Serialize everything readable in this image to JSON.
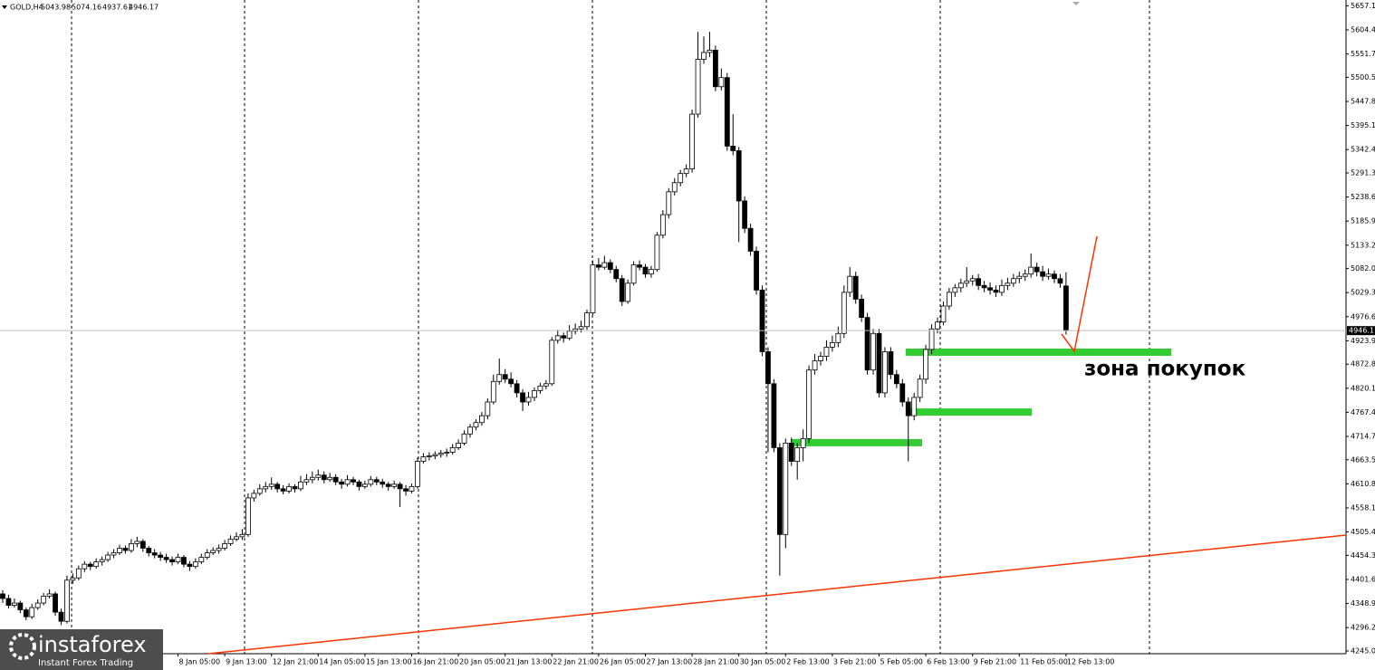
{
  "chart_data": {
    "type": "candlestick",
    "symbol": "GOLD,H4",
    "ylim": [
      4239.1,
      5669.8
    ],
    "yticks": [
      {
        "value": 5657.1,
        "label": "5657.10"
      },
      {
        "value": 5604.4,
        "label": "5604.40"
      },
      {
        "value": 5551.7,
        "label": "5551.70"
      },
      5500.55,
      {
        "value": 5447.8,
        "label": "5447.80"
      },
      5395.15,
      5342.45,
      {
        "value": 5291.3,
        "label": "5291.30"
      },
      {
        "value": 5238.6,
        "label": "5238.60"
      },
      {
        "value": 5185.9,
        "label": "5185.90"
      },
      {
        "value": 5133.2,
        "label": "5133.20"
      },
      5082.05,
      5029.35,
      4976.65,
      4923.95,
      {
        "value": 4872.8,
        "label": "4872.80"
      },
      {
        "value": 4820.1,
        "label": "4820.10"
      },
      {
        "value": 4767.4,
        "label": "4767.40"
      },
      {
        "value": 4714.7,
        "label": "4714.70"
      },
      4663.55,
      4610.85,
      4558.15,
      4505.45,
      {
        "value": 4454.3,
        "label": "4454.30"
      },
      {
        "value": 4401.6,
        "label": "4401.60"
      },
      {
        "value": 4348.9,
        "label": "4348.90"
      },
      {
        "value": 4296.2,
        "label": "4296.20"
      },
      4245.05
    ],
    "x_labels": [
      "8 Jan 05:00",
      "9 Jan 13:00",
      "12 Jan 21:00",
      "14 Jan 05:00",
      "15 Jan 13:00",
      "16 Jan 21:00",
      "20 Jan 05:00",
      "21 Jan 13:00",
      "22 Jan 21:00",
      "26 Jan 05:00",
      "27 Jan 13:00",
      "28 Jan 21:00",
      "30 Jan 05:00",
      "2 Feb 13:00",
      "3 Feb 21:00",
      "5 Feb 05:00",
      "6 Feb 13:00",
      "9 Feb 21:00",
      "11 Feb 05:00",
      "12 Feb 13:00"
    ],
    "colors": {
      "bull": "#ffffff",
      "bear": "#000000",
      "zone": "#33cc33",
      "trend": "#ff3300"
    },
    "zones": [
      4899,
      4768,
      4701
    ],
    "annotation": "зона покупок",
    "watermark": {
      "brand": "instaforex",
      "tagline": "Instant Forex Trading"
    },
    "ohlc": [
      [
        4370,
        4378,
        4350,
        4360
      ],
      [
        4360,
        4368,
        4338,
        4345
      ],
      [
        4345,
        4360,
        4340,
        4350
      ],
      [
        4350,
        4355,
        4328,
        4335
      ],
      [
        4335,
        4340,
        4312,
        4320
      ],
      [
        4320,
        4348,
        4315,
        4340
      ],
      [
        4340,
        4358,
        4335,
        4350
      ],
      [
        4350,
        4372,
        4345,
        4365
      ],
      [
        4365,
        4380,
        4360,
        4370
      ],
      [
        4370,
        4375,
        4322,
        4330
      ],
      [
        4330,
        4338,
        4302,
        4310
      ],
      [
        4310,
        4410,
        4305,
        4400
      ],
      [
        4400,
        4415,
        4392,
        4405
      ],
      [
        4405,
        4432,
        4400,
        4425
      ],
      [
        4425,
        4442,
        4418,
        4435
      ],
      [
        4435,
        4440,
        4422,
        4430
      ],
      [
        4430,
        4448,
        4425,
        4440
      ],
      [
        4440,
        4452,
        4432,
        4445
      ],
      [
        4445,
        4462,
        4440,
        4455
      ],
      [
        4455,
        4468,
        4448,
        4460
      ],
      [
        4460,
        4478,
        4455,
        4470
      ],
      [
        4470,
        4476,
        4458,
        4465
      ],
      [
        4465,
        4490,
        4460,
        4480
      ],
      [
        4480,
        4495,
        4472,
        4485
      ],
      [
        4485,
        4490,
        4462,
        4470
      ],
      [
        4470,
        4475,
        4452,
        4460
      ],
      [
        4460,
        4468,
        4448,
        4455
      ],
      [
        4455,
        4462,
        4442,
        4450
      ],
      [
        4450,
        4458,
        4438,
        4445
      ],
      [
        4445,
        4452,
        4432,
        4440
      ],
      [
        4440,
        4458,
        4435,
        4450
      ],
      [
        4450,
        4455,
        4428,
        4435
      ],
      [
        4435,
        4442,
        4420,
        4430
      ],
      [
        4430,
        4448,
        4425,
        4440
      ],
      [
        4440,
        4458,
        4435,
        4450
      ],
      [
        4450,
        4468,
        4445,
        4460
      ],
      [
        4460,
        4472,
        4455,
        4465
      ],
      [
        4465,
        4478,
        4458,
        4470
      ],
      [
        4470,
        4488,
        4465,
        4480
      ],
      [
        4480,
        4498,
        4475,
        4490
      ],
      [
        4490,
        4505,
        4485,
        4495
      ],
      [
        4495,
        4512,
        4488,
        4500
      ],
      [
        4500,
        4590,
        4495,
        4580
      ],
      [
        4580,
        4598,
        4572,
        4590
      ],
      [
        4590,
        4610,
        4585,
        4600
      ],
      [
        4600,
        4615,
        4592,
        4605
      ],
      [
        4605,
        4625,
        4598,
        4610
      ],
      [
        4610,
        4615,
        4592,
        4600
      ],
      [
        4600,
        4608,
        4588,
        4595
      ],
      [
        4595,
        4612,
        4590,
        4605
      ],
      [
        4605,
        4610,
        4592,
        4600
      ],
      [
        4600,
        4628,
        4595,
        4615
      ],
      [
        4615,
        4632,
        4608,
        4620
      ],
      [
        4620,
        4638,
        4612,
        4625
      ],
      [
        4625,
        4642,
        4618,
        4630
      ],
      [
        4630,
        4638,
        4612,
        4620
      ],
      [
        4620,
        4635,
        4615,
        4625
      ],
      [
        4625,
        4632,
        4608,
        4615
      ],
      [
        4615,
        4622,
        4600,
        4610
      ],
      [
        4610,
        4630,
        4605,
        4620
      ],
      [
        4620,
        4626,
        4608,
        4615
      ],
      [
        4615,
        4620,
        4596,
        4605
      ],
      [
        4605,
        4618,
        4600,
        4610
      ],
      [
        4610,
        4628,
        4605,
        4620
      ],
      [
        4620,
        4626,
        4608,
        4615
      ],
      [
        4615,
        4622,
        4602,
        4610
      ],
      [
        4610,
        4615,
        4596,
        4605
      ],
      [
        4605,
        4618,
        4600,
        4610
      ],
      [
        4610,
        4615,
        4560,
        4600
      ],
      [
        4600,
        4608,
        4585,
        4595
      ],
      [
        4595,
        4612,
        4590,
        4605
      ],
      [
        4605,
        4668,
        4600,
        4660
      ],
      [
        4660,
        4678,
        4655,
        4670
      ],
      [
        4670,
        4680,
        4662,
        4672
      ],
      [
        4672,
        4682,
        4665,
        4675
      ],
      [
        4675,
        4685,
        4668,
        4678
      ],
      [
        4678,
        4688,
        4670,
        4680
      ],
      [
        4680,
        4698,
        4675,
        4690
      ],
      [
        4690,
        4708,
        4685,
        4700
      ],
      [
        4700,
        4728,
        4695,
        4720
      ],
      [
        4720,
        4742,
        4712,
        4735
      ],
      [
        4735,
        4752,
        4728,
        4745
      ],
      [
        4745,
        4768,
        4738,
        4760
      ],
      [
        4760,
        4798,
        4752,
        4790
      ],
      [
        4790,
        4850,
        4785,
        4835
      ],
      [
        4835,
        4885,
        4828,
        4850
      ],
      [
        4850,
        4862,
        4832,
        4840
      ],
      [
        4840,
        4855,
        4822,
        4830
      ],
      [
        4830,
        4838,
        4800,
        4810
      ],
      [
        4810,
        4818,
        4770,
        4790
      ],
      [
        4790,
        4812,
        4782,
        4800
      ],
      [
        4800,
        4822,
        4792,
        4815
      ],
      [
        4815,
        4832,
        4808,
        4825
      ],
      [
        4825,
        4838,
        4818,
        4830
      ],
      [
        4830,
        4932,
        4825,
        4925
      ],
      [
        4925,
        4948,
        4918,
        4935
      ],
      [
        4935,
        4942,
        4920,
        4930
      ],
      [
        4930,
        4958,
        4925,
        4945
      ],
      [
        4945,
        4962,
        4938,
        4950
      ],
      [
        4950,
        4968,
        4942,
        4955
      ],
      [
        4955,
        4992,
        4948,
        4985
      ],
      [
        4985,
        5100,
        4980,
        5090
      ],
      [
        5090,
        5105,
        5078,
        5085
      ],
      [
        5085,
        5110,
        5080,
        5095
      ],
      [
        5095,
        5102,
        5072,
        5080
      ],
      [
        5080,
        5088,
        5052,
        5060
      ],
      [
        5060,
        5068,
        5000,
        5010
      ],
      [
        5010,
        5058,
        5005,
        5050
      ],
      [
        5050,
        5098,
        5045,
        5090
      ],
      [
        5090,
        5100,
        5078,
        5085
      ],
      [
        5085,
        5092,
        5062,
        5070
      ],
      [
        5070,
        5088,
        5062,
        5080
      ],
      [
        5080,
        5162,
        5075,
        5155
      ],
      [
        5155,
        5210,
        5148,
        5200
      ],
      [
        5200,
        5258,
        5192,
        5250
      ],
      [
        5250,
        5280,
        5242,
        5270
      ],
      [
        5270,
        5298,
        5262,
        5290
      ],
      [
        5290,
        5310,
        5282,
        5300
      ],
      [
        5300,
        5430,
        5292,
        5420
      ],
      [
        5420,
        5600,
        5412,
        5540
      ],
      [
        5540,
        5590,
        5530,
        5555
      ],
      [
        5555,
        5600,
        5545,
        5560
      ],
      [
        5560,
        5570,
        5470,
        5480
      ],
      [
        5480,
        5520,
        5472,
        5500
      ],
      [
        5500,
        5510,
        5340,
        5350
      ],
      [
        5350,
        5420,
        5330,
        5340
      ],
      [
        5340,
        5348,
        5140,
        5230
      ],
      [
        5230,
        5240,
        5160,
        5170
      ],
      [
        5170,
        5180,
        5110,
        5120
      ],
      [
        5120,
        5130,
        5025,
        5035
      ],
      [
        5035,
        5045,
        4890,
        4900
      ],
      [
        4900,
        4910,
        4680,
        4830
      ],
      [
        4830,
        4840,
        4680,
        4690
      ],
      [
        4690,
        4700,
        4410,
        4500
      ],
      [
        4500,
        4710,
        4470,
        4700
      ],
      [
        4700,
        4712,
        4650,
        4660
      ],
      [
        4660,
        4700,
        4620,
        4690
      ],
      [
        4690,
        4730,
        4660,
        4710
      ],
      [
        4710,
        4870,
        4700,
        4860
      ],
      [
        4860,
        4895,
        4850,
        4880
      ],
      [
        4880,
        4900,
        4870,
        4890
      ],
      [
        4890,
        4925,
        4880,
        4910
      ],
      [
        4910,
        4935,
        4900,
        4920
      ],
      [
        4920,
        4955,
        4910,
        4940
      ],
      [
        4940,
        5045,
        4930,
        5030
      ],
      [
        5030,
        5085,
        5020,
        5065
      ],
      [
        5065,
        5075,
        5005,
        5015
      ],
      [
        5015,
        5025,
        4965,
        4975
      ],
      [
        4975,
        4985,
        4850,
        4860
      ],
      [
        4860,
        4950,
        4850,
        4940
      ],
      [
        4940,
        4950,
        4800,
        4810
      ],
      [
        4810,
        4910,
        4800,
        4900
      ],
      [
        4900,
        4910,
        4840,
        4850
      ],
      [
        4850,
        4860,
        4820,
        4830
      ],
      [
        4830,
        4840,
        4780,
        4790
      ],
      [
        4790,
        4800,
        4660,
        4760
      ],
      [
        4760,
        4810,
        4750,
        4800
      ],
      [
        4800,
        4850,
        4790,
        4840
      ],
      [
        4840,
        4915,
        4830,
        4905
      ],
      [
        4905,
        4960,
        4895,
        4950
      ],
      [
        4950,
        4975,
        4940,
        4965
      ],
      [
        4965,
        5010,
        4958,
        5000
      ],
      [
        5000,
        5040,
        4992,
        5030
      ],
      [
        5030,
        5048,
        5020,
        5040
      ],
      [
        5040,
        5060,
        5030,
        5050
      ],
      [
        5050,
        5085,
        5042,
        5055
      ],
      [
        5055,
        5068,
        5045,
        5060
      ],
      [
        5060,
        5070,
        5035,
        5045
      ],
      [
        5045,
        5055,
        5030,
        5040
      ],
      [
        5040,
        5052,
        5025,
        5035
      ],
      [
        5035,
        5045,
        5020,
        5030
      ],
      [
        5030,
        5058,
        5022,
        5045
      ],
      [
        5045,
        5062,
        5035,
        5050
      ],
      [
        5050,
        5070,
        5042,
        5060
      ],
      [
        5060,
        5075,
        5050,
        5065
      ],
      [
        5065,
        5080,
        5055,
        5070
      ],
      [
        5070,
        5115,
        5062,
        5085
      ],
      [
        5085,
        5095,
        5065,
        5075
      ],
      [
        5075,
        5088,
        5055,
        5065
      ],
      [
        5065,
        5082,
        5058,
        5070
      ],
      [
        5070,
        5078,
        5050,
        5060
      ],
      [
        5060,
        5070,
        5040,
        5050
      ],
      [
        5043.98,
        5074.16,
        4937.61,
        4946.17
      ]
    ]
  }
}
